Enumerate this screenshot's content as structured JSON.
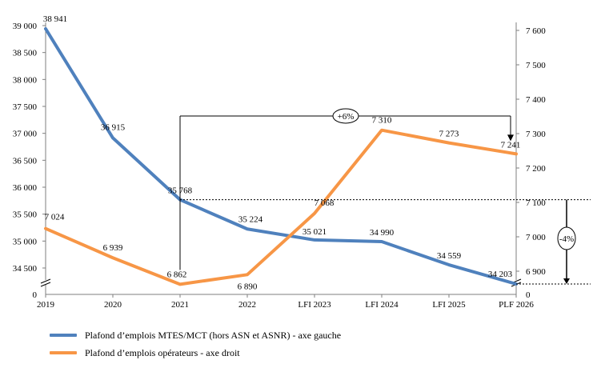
{
  "chart_data": {
    "type": "line",
    "categories": [
      "2019",
      "2020",
      "2021",
      "2022",
      "LFI 2023",
      "LFI 2024",
      "LFI 2025",
      "PLF 2026"
    ],
    "series": [
      {
        "name": "Plafond d’emplois MTES/MCT (hors ASN et ASNR) - axe gauche",
        "axis": "left",
        "color": "#4F81BD",
        "values": [
          38941,
          36915,
          35768,
          35224,
          35021,
          34990,
          34559,
          34203
        ],
        "labels": [
          "38 941",
          "36 915",
          "35 768",
          "35 224",
          "35 021",
          "34 990",
          "34 559",
          "34 203"
        ]
      },
      {
        "name": "Plafond d’emplois opérateurs - axe droit",
        "axis": "right",
        "color": "#F79646",
        "values": [
          7024,
          6939,
          6862,
          6890,
          7068,
          7310,
          7273,
          7241
        ],
        "labels": [
          "7 024",
          "6 939",
          "6 862",
          "6 890",
          "7 068",
          "7 310",
          "7 273",
          "7 241"
        ]
      }
    ],
    "y_left": {
      "ticks": [
        34500,
        35000,
        35500,
        36000,
        36500,
        37000,
        37500,
        38000,
        38500,
        39000
      ],
      "tick_labels": [
        "34 500",
        "35 000",
        "35 500",
        "36 000",
        "36 500",
        "37 000",
        "37 500",
        "38 000",
        "38 500",
        "39 000"
      ],
      "zero_label": "0",
      "broken": true
    },
    "y_right": {
      "ticks": [
        6900,
        7000,
        7100,
        7200,
        7300,
        7400,
        7500,
        7600
      ],
      "tick_labels": [
        "6 900",
        "7 000",
        "7 100",
        "7 200",
        "7 300",
        "7 400",
        "7 500",
        "7 600"
      ],
      "zero_label": "0",
      "broken": true
    },
    "annotations": [
      {
        "text": "+6%",
        "from": "2021",
        "to": "PLF 2026",
        "series": "Plafond d’emplois opérateurs - axe droit"
      },
      {
        "text": "-4%",
        "from": "2021",
        "to": "PLF 2026",
        "series": "Plafond d’emplois MTES/MCT (hors ASN et ASNR) - axe gauche"
      }
    ],
    "legend_position": "bottom-left"
  }
}
